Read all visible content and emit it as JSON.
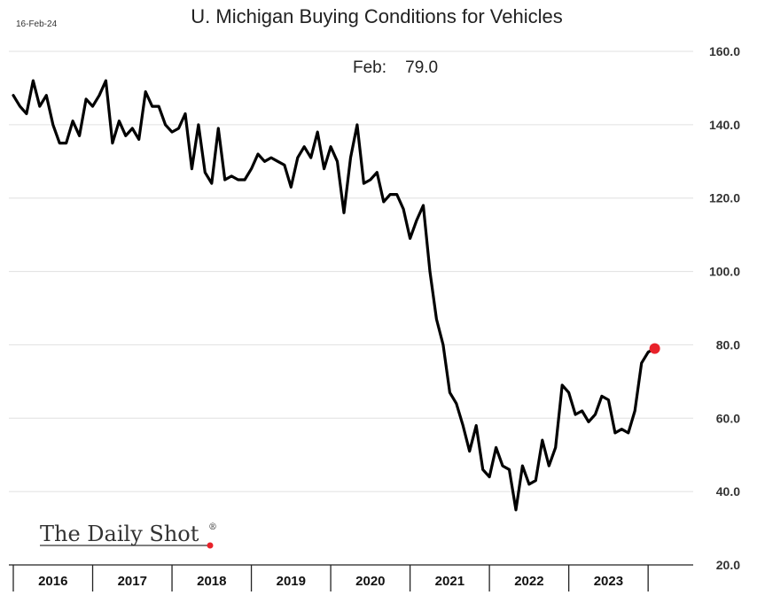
{
  "header": {
    "date_stamp": "16-Feb-24"
  },
  "brand": {
    "text": "The Daily Shot",
    "mark": "®",
    "dot_color": "#e8222a"
  },
  "chart_data": {
    "type": "line",
    "title": "U. Michigan Buying Conditions for Vehicles",
    "annotation": "Feb:    79.0",
    "xlabel": "",
    "ylabel": "",
    "ylim": [
      20,
      160
    ],
    "yticks": [
      20,
      40,
      60,
      80,
      100,
      120,
      140,
      160
    ],
    "ytick_labels": [
      "20.0",
      "40.0",
      "60.0",
      "80.0",
      "100.0",
      "120.0",
      "140.0",
      "160.0"
    ],
    "year_labels": [
      "2016",
      "2017",
      "2018",
      "2019",
      "2020",
      "2021",
      "2022",
      "2023"
    ],
    "grid": "horizontal",
    "line_color": "#000000",
    "highlight_color": "#e8222a",
    "series": [
      {
        "x": [
          "2016-01",
          "2016-02",
          "2016-03",
          "2016-04",
          "2016-05",
          "2016-06",
          "2016-07",
          "2016-08",
          "2016-09",
          "2016-10",
          "2016-11",
          "2016-12",
          "2017-01",
          "2017-02",
          "2017-03",
          "2017-04",
          "2017-05",
          "2017-06",
          "2017-07",
          "2017-08",
          "2017-09",
          "2017-10",
          "2017-11",
          "2017-12",
          "2018-01",
          "2018-02",
          "2018-03",
          "2018-04",
          "2018-05",
          "2018-06",
          "2018-07",
          "2018-08",
          "2018-09",
          "2018-10",
          "2018-11",
          "2018-12",
          "2019-01",
          "2019-02",
          "2019-03",
          "2019-04",
          "2019-05",
          "2019-06",
          "2019-07",
          "2019-08",
          "2019-09",
          "2019-10",
          "2019-11",
          "2019-12",
          "2020-01",
          "2020-02",
          "2020-03",
          "2020-04",
          "2020-05",
          "2020-06",
          "2020-07",
          "2020-08",
          "2020-09",
          "2020-10",
          "2020-11",
          "2020-12",
          "2021-01",
          "2021-02",
          "2021-03",
          "2021-04",
          "2021-05",
          "2021-06",
          "2021-07",
          "2021-08",
          "2021-09",
          "2021-10",
          "2021-11",
          "2021-12",
          "2022-01",
          "2022-02",
          "2022-03",
          "2022-04",
          "2022-05",
          "2022-06",
          "2022-07",
          "2022-08",
          "2022-09",
          "2022-10",
          "2022-11",
          "2022-12",
          "2023-01",
          "2023-02",
          "2023-03",
          "2023-04",
          "2023-05",
          "2023-06",
          "2023-07",
          "2023-08",
          "2023-09",
          "2023-10",
          "2023-11",
          "2023-12",
          "2024-01",
          "2024-02"
        ],
        "values": [
          148,
          145,
          143,
          152,
          145,
          148,
          140,
          135,
          135,
          141,
          137,
          147,
          145,
          148,
          152,
          135,
          141,
          137,
          139,
          136,
          149,
          145,
          145,
          140,
          138,
          139,
          143,
          128,
          140,
          127,
          124,
          139,
          125,
          126,
          125,
          125,
          128,
          132,
          130,
          131,
          130,
          129,
          123,
          131,
          134,
          131,
          138,
          128,
          134,
          130,
          116,
          131,
          140,
          124,
          125,
          127,
          119,
          121,
          121,
          117,
          109,
          114,
          118,
          100,
          87,
          80,
          67,
          64,
          58,
          51,
          58,
          46,
          44,
          52,
          47,
          46,
          35,
          47,
          42,
          43,
          54,
          47,
          52,
          69,
          67,
          61,
          62,
          59,
          61,
          66,
          65,
          56,
          57,
          56,
          62,
          75,
          78,
          79
        ]
      }
    ]
  }
}
